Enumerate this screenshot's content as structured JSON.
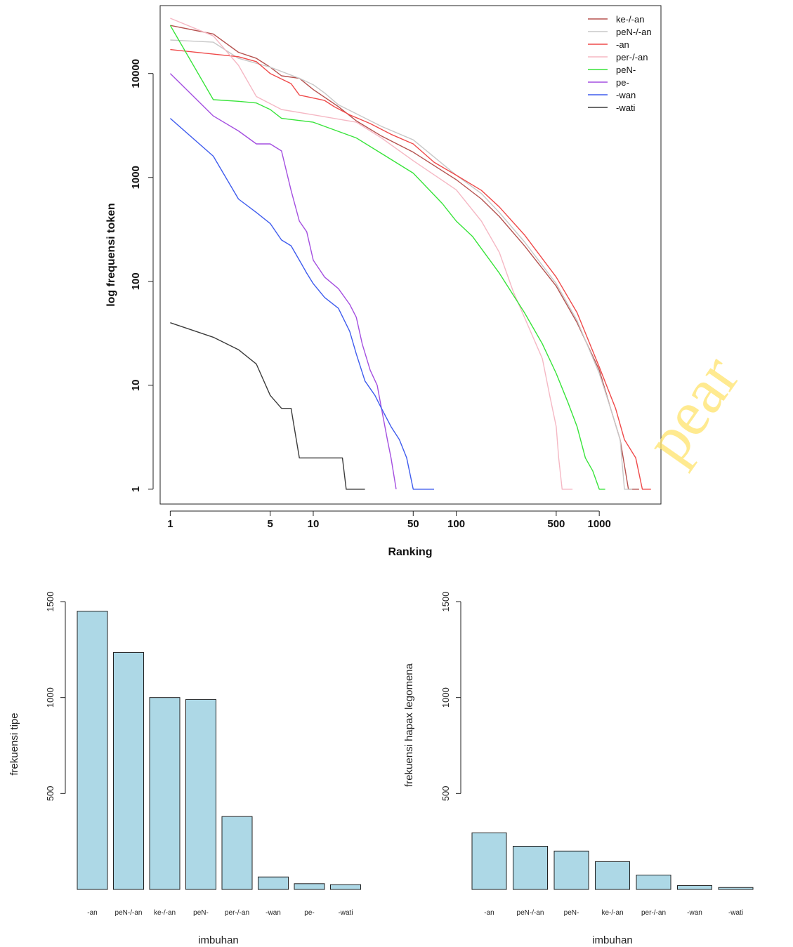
{
  "watermark": "pear",
  "chart_data": [
    {
      "type": "line",
      "title": "",
      "xlabel": "Ranking",
      "ylabel": "log frequensi token",
      "xscale": "log",
      "yscale": "log",
      "xlim": [
        0.85,
        2700
      ],
      "ylim": [
        0.72,
        45000
      ],
      "xticks": [
        1,
        5,
        10,
        50,
        100,
        500,
        1000
      ],
      "xtick_labels": [
        "1",
        "5",
        "10",
        "50",
        "100",
        "500",
        "1000"
      ],
      "yticks": [
        1,
        10,
        100,
        1000,
        10000
      ],
      "ytick_labels": [
        "1",
        "10",
        "100",
        "1000",
        "10000"
      ],
      "legend_position": "top-right",
      "series": [
        {
          "name": "ke-/-an",
          "color": "#b5524f",
          "points": [
            [
              1,
              29000
            ],
            [
              2,
              24000
            ],
            [
              3,
              16000
            ],
            [
              4,
              14000
            ],
            [
              5,
              11500
            ],
            [
              6,
              9500
            ],
            [
              8,
              9000
            ],
            [
              10,
              7000
            ],
            [
              15,
              4800
            ],
            [
              20,
              3500
            ],
            [
              30,
              2500
            ],
            [
              50,
              1750
            ],
            [
              100,
              950
            ],
            [
              150,
              620
            ],
            [
              200,
              420
            ],
            [
              300,
              220
            ],
            [
              500,
              90
            ],
            [
              700,
              40
            ],
            [
              1000,
              14
            ],
            [
              1200,
              6
            ],
            [
              1400,
              3
            ],
            [
              1600,
              1
            ],
            [
              1900,
              1
            ]
          ]
        },
        {
          "name": "peN-/-an",
          "color": "#c8c8c8",
          "points": [
            [
              1,
              21000
            ],
            [
              2,
              20000
            ],
            [
              3,
              14000
            ],
            [
              5,
              11500
            ],
            [
              8,
              9000
            ],
            [
              10,
              7800
            ],
            [
              12,
              6500
            ],
            [
              15,
              5000
            ],
            [
              20,
              4100
            ],
            [
              30,
              3100
            ],
            [
              50,
              2300
            ],
            [
              100,
              1050
            ],
            [
              150,
              700
            ],
            [
              200,
              460
            ],
            [
              300,
              240
            ],
            [
              500,
              95
            ],
            [
              700,
              42
            ],
            [
              1000,
              13
            ],
            [
              1200,
              6
            ],
            [
              1400,
              3
            ],
            [
              1500,
              1
            ],
            [
              1700,
              1
            ]
          ]
        },
        {
          "name": "-an",
          "color": "#ef4a4a",
          "points": [
            [
              1,
              17000
            ],
            [
              3,
              14500
            ],
            [
              4,
              13000
            ],
            [
              5,
              10000
            ],
            [
              7,
              8000
            ],
            [
              8,
              6200
            ],
            [
              12,
              5500
            ],
            [
              14,
              4800
            ],
            [
              18,
              4000
            ],
            [
              25,
              3300
            ],
            [
              35,
              2600
            ],
            [
              50,
              2100
            ],
            [
              70,
              1400
            ],
            [
              100,
              1050
            ],
            [
              150,
              750
            ],
            [
              200,
              520
            ],
            [
              300,
              280
            ],
            [
              500,
              110
            ],
            [
              700,
              50
            ],
            [
              1000,
              15
            ],
            [
              1300,
              6
            ],
            [
              1500,
              3
            ],
            [
              1800,
              2
            ],
            [
              2000,
              1
            ],
            [
              2300,
              1
            ]
          ]
        },
        {
          "name": "per-/-an",
          "color": "#f5b8c4",
          "points": [
            [
              1,
              34000
            ],
            [
              2,
              23000
            ],
            [
              3,
              12000
            ],
            [
              4,
              6000
            ],
            [
              6,
              4500
            ],
            [
              10,
              4000
            ],
            [
              20,
              3400
            ],
            [
              30,
              2400
            ],
            [
              50,
              1450
            ],
            [
              100,
              760
            ],
            [
              150,
              380
            ],
            [
              200,
              190
            ],
            [
              250,
              80
            ],
            [
              300,
              45
            ],
            [
              400,
              18
            ],
            [
              450,
              8
            ],
            [
              500,
              4
            ],
            [
              520,
              2
            ],
            [
              550,
              1
            ],
            [
              650,
              1
            ]
          ]
        },
        {
          "name": "peN-",
          "color": "#38e43a",
          "points": [
            [
              1,
              29000
            ],
            [
              2,
              5600
            ],
            [
              3,
              5400
            ],
            [
              4,
              5200
            ],
            [
              5,
              4500
            ],
            [
              6,
              3700
            ],
            [
              10,
              3400
            ],
            [
              20,
              2400
            ],
            [
              30,
              1700
            ],
            [
              50,
              1100
            ],
            [
              80,
              560
            ],
            [
              100,
              380
            ],
            [
              130,
              270
            ],
            [
              200,
              120
            ],
            [
              300,
              50
            ],
            [
              400,
              25
            ],
            [
              500,
              13
            ],
            [
              600,
              7
            ],
            [
              700,
              4
            ],
            [
              800,
              2
            ],
            [
              900,
              1.5
            ],
            [
              1000,
              1
            ],
            [
              1100,
              1
            ]
          ]
        },
        {
          "name": "pe-",
          "color": "#a44fe0",
          "points": [
            [
              1,
              10000
            ],
            [
              2,
              3900
            ],
            [
              3,
              2800
            ],
            [
              4,
              2100
            ],
            [
              5,
              2100
            ],
            [
              6,
              1800
            ],
            [
              7,
              750
            ],
            [
              8,
              380
            ],
            [
              9,
              300
            ],
            [
              10,
              160
            ],
            [
              12,
              110
            ],
            [
              15,
              85
            ],
            [
              18,
              60
            ],
            [
              20,
              45
            ],
            [
              22,
              25
            ],
            [
              25,
              14
            ],
            [
              28,
              10
            ],
            [
              30,
              6
            ],
            [
              33,
              3
            ],
            [
              35,
              2
            ],
            [
              38,
              1
            ]
          ]
        },
        {
          "name": "-wan",
          "color": "#3f5cee",
          "points": [
            [
              1,
              3700
            ],
            [
              2,
              1600
            ],
            [
              3,
              620
            ],
            [
              4,
              460
            ],
            [
              5,
              360
            ],
            [
              6,
              250
            ],
            [
              7,
              220
            ],
            [
              8,
              160
            ],
            [
              9,
              120
            ],
            [
              10,
              95
            ],
            [
              12,
              70
            ],
            [
              15,
              55
            ],
            [
              18,
              33
            ],
            [
              20,
              20
            ],
            [
              23,
              11
            ],
            [
              27,
              8
            ],
            [
              30,
              6
            ],
            [
              35,
              4
            ],
            [
              40,
              3
            ],
            [
              45,
              2
            ],
            [
              50,
              1
            ],
            [
              70,
              1
            ]
          ]
        },
        {
          "name": "-wati",
          "color": "#3b3b3b",
          "points": [
            [
              1,
              40
            ],
            [
              2,
              29
            ],
            [
              3,
              22
            ],
            [
              4,
              16
            ],
            [
              5,
              8
            ],
            [
              6,
              6
            ],
            [
              7,
              6
            ],
            [
              8,
              2
            ],
            [
              12,
              2
            ],
            [
              16,
              2
            ],
            [
              17,
              1
            ],
            [
              23,
              1
            ]
          ]
        }
      ]
    },
    {
      "type": "bar",
      "title": "",
      "xlabel": "imbuhan",
      "ylabel": "frekuensi tipe",
      "ylim": [
        0,
        1500
      ],
      "yticks": [
        500,
        1000,
        1500
      ],
      "ytick_labels": [
        "500",
        "1000",
        "1500"
      ],
      "categories": [
        "-an",
        "peN-/-an",
        "ke-/-an",
        "peN-",
        "per-/-an",
        "-wan",
        "pe-",
        "-wati"
      ],
      "values": [
        1450,
        1235,
        1000,
        990,
        380,
        65,
        30,
        25
      ],
      "bar_color": "#add8e6"
    },
    {
      "type": "bar",
      "title": "",
      "xlabel": "imbuhan",
      "ylabel": "frekuensi hapax legomena",
      "ylim": [
        0,
        1500
      ],
      "yticks": [
        500,
        1000,
        1500
      ],
      "ytick_labels": [
        "500",
        "1000",
        "1500"
      ],
      "categories": [
        "-an",
        "peN-/-an",
        "peN-",
        "ke-/-an",
        "per-/-an",
        "-wan",
        "-wati"
      ],
      "values": [
        295,
        225,
        200,
        145,
        75,
        20,
        10
      ],
      "bar_color": "#add8e6"
    }
  ]
}
